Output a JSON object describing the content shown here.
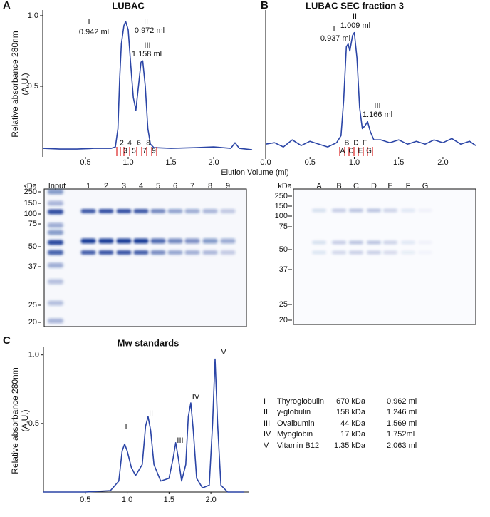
{
  "panels": [
    "A",
    "B",
    "C"
  ],
  "shared_xlabel": "Elution Volume (ml)",
  "chart_data": [
    {
      "type": "line",
      "title": "LUBAC",
      "color": "#2b45a6",
      "ylabel": [
        "Relative absorbance 280nm",
        "(A.U.)"
      ],
      "x": [
        0,
        0.2,
        0.4,
        0.6,
        0.8,
        0.85,
        0.88,
        0.9,
        0.92,
        0.95,
        0.97,
        1.0,
        1.03,
        1.06,
        1.09,
        1.12,
        1.15,
        1.17,
        1.2,
        1.23,
        1.26,
        1.3,
        1.5,
        1.8,
        2.0,
        2.2,
        2.25,
        2.3,
        2.45
      ],
      "values": [
        0.06,
        0.055,
        0.055,
        0.06,
        0.06,
        0.07,
        0.2,
        0.55,
        0.8,
        0.93,
        0.96,
        0.9,
        0.65,
        0.42,
        0.33,
        0.5,
        0.67,
        0.68,
        0.5,
        0.2,
        0.09,
        0.065,
        0.06,
        0.065,
        0.07,
        0.06,
        0.1,
        0.06,
        0.05
      ],
      "xlim": [
        0,
        2.45
      ],
      "ylim": [
        0,
        1.02
      ],
      "xticks": [
        0.5,
        {
          "value": 1,
          "label": "1.0"
        },
        1.5,
        {
          "value": 2,
          "label": "2.0"
        }
      ],
      "yticks": [
        0.5,
        {
          "value": 1,
          "label": "1.0"
        }
      ],
      "x_axis_line": false,
      "annotations": [
        "I",
        "0.942 ml",
        "II",
        "0.972 ml",
        "III",
        "1.158 ml"
      ],
      "fractions": [
        "2",
        "3",
        "4",
        "5",
        "6",
        "7",
        "8",
        "9"
      ]
    },
    {
      "type": "line",
      "title": "LUBAC SEC fraction 3",
      "color": "#2b45a6",
      "x": [
        0,
        0.1,
        0.2,
        0.3,
        0.4,
        0.5,
        0.6,
        0.7,
        0.8,
        0.85,
        0.88,
        0.91,
        0.93,
        0.95,
        0.98,
        1.0,
        1.03,
        1.06,
        1.09,
        1.12,
        1.15,
        1.18,
        1.22,
        1.3,
        1.4,
        1.5,
        1.6,
        1.7,
        1.8,
        1.9,
        2.0,
        2.1,
        2.2,
        2.3,
        2.37
      ],
      "values": [
        0.09,
        0.1,
        0.07,
        0.12,
        0.08,
        0.11,
        0.09,
        0.07,
        0.1,
        0.15,
        0.4,
        0.78,
        0.8,
        0.75,
        0.86,
        0.88,
        0.7,
        0.35,
        0.2,
        0.22,
        0.25,
        0.18,
        0.12,
        0.12,
        0.1,
        0.12,
        0.09,
        0.11,
        0.09,
        0.12,
        0.1,
        0.13,
        0.09,
        0.11,
        0.08
      ],
      "xlim": [
        0,
        2.37
      ],
      "ylim": [
        0,
        1.02
      ],
      "xticks": [
        {
          "value": 0,
          "label": "0.0"
        },
        0.5,
        {
          "value": 1,
          "label": "1.0"
        },
        1.5,
        {
          "value": 2,
          "label": "2.0"
        }
      ],
      "yticks": [],
      "x_axis_line": false,
      "annotations": [
        "I",
        "0.937 ml",
        "II",
        "1.009 ml",
        "III",
        "1.166 ml"
      ],
      "fractions": [
        "A",
        "B",
        "C",
        "D",
        "E",
        "F",
        "G"
      ]
    },
    {
      "type": "line",
      "title": "Mw standards",
      "color": "#2b45a6",
      "ylabel": [
        "Relative absorbance 280nm",
        "(A.U.)"
      ],
      "x": [
        0,
        0.5,
        0.8,
        0.9,
        0.94,
        0.97,
        1.0,
        1.05,
        1.1,
        1.18,
        1.22,
        1.25,
        1.28,
        1.32,
        1.4,
        1.5,
        1.55,
        1.58,
        1.61,
        1.65,
        1.7,
        1.73,
        1.76,
        1.79,
        1.83,
        1.9,
        1.98,
        2.02,
        2.05,
        2.08,
        2.12,
        2.2,
        2.4
      ],
      "values": [
        0,
        0,
        0.01,
        0.08,
        0.3,
        0.35,
        0.3,
        0.18,
        0.12,
        0.2,
        0.48,
        0.55,
        0.45,
        0.2,
        0.08,
        0.1,
        0.25,
        0.36,
        0.25,
        0.08,
        0.2,
        0.55,
        0.65,
        0.45,
        0.1,
        0.03,
        0.05,
        0.5,
        0.97,
        0.5,
        0.05,
        0,
        0
      ],
      "xlim": [
        0,
        2.45
      ],
      "ylim": [
        0,
        1.04
      ],
      "xticks": [
        0.5,
        {
          "value": 1,
          "label": "1.0"
        },
        1.5,
        {
          "value": 2,
          "label": "2.0"
        }
      ],
      "yticks": [
        0.5,
        {
          "value": 1,
          "label": "1.0"
        }
      ],
      "x_axis_line": true,
      "annotations": [
        "I",
        "II",
        "III",
        "IV",
        "V"
      ]
    }
  ],
  "gels": [
    {
      "unit": "kDa",
      "lanes": [
        "Input",
        "1",
        "2",
        "3",
        "4",
        "5",
        "6",
        "7",
        "8",
        "9"
      ],
      "markers": [
        "250",
        "150",
        "100",
        "75",
        "50",
        "37",
        "25",
        "20"
      ]
    },
    {
      "unit": "kDa",
      "lanes": [
        "A",
        "B",
        "C",
        "D",
        "E",
        "F",
        "G"
      ],
      "markers": [
        "250",
        "150",
        "100",
        "75",
        "50",
        "37",
        "25",
        "20"
      ]
    }
  ],
  "standards": {
    "rows": [
      [
        "I",
        "Thyroglobulin",
        "670 kDa",
        "0.962 ml"
      ],
      [
        "II",
        "γ-globulin",
        "158 kDa",
        "1.246 ml"
      ],
      [
        "III",
        "Ovalbumin",
        "44 kDa",
        "1.569 ml"
      ],
      [
        "IV",
        "Myoglobin",
        "17 kDa",
        "1.752ml"
      ],
      [
        "V",
        "Vitamin B12",
        "1.35 kDa",
        "2.063 ml"
      ]
    ]
  }
}
